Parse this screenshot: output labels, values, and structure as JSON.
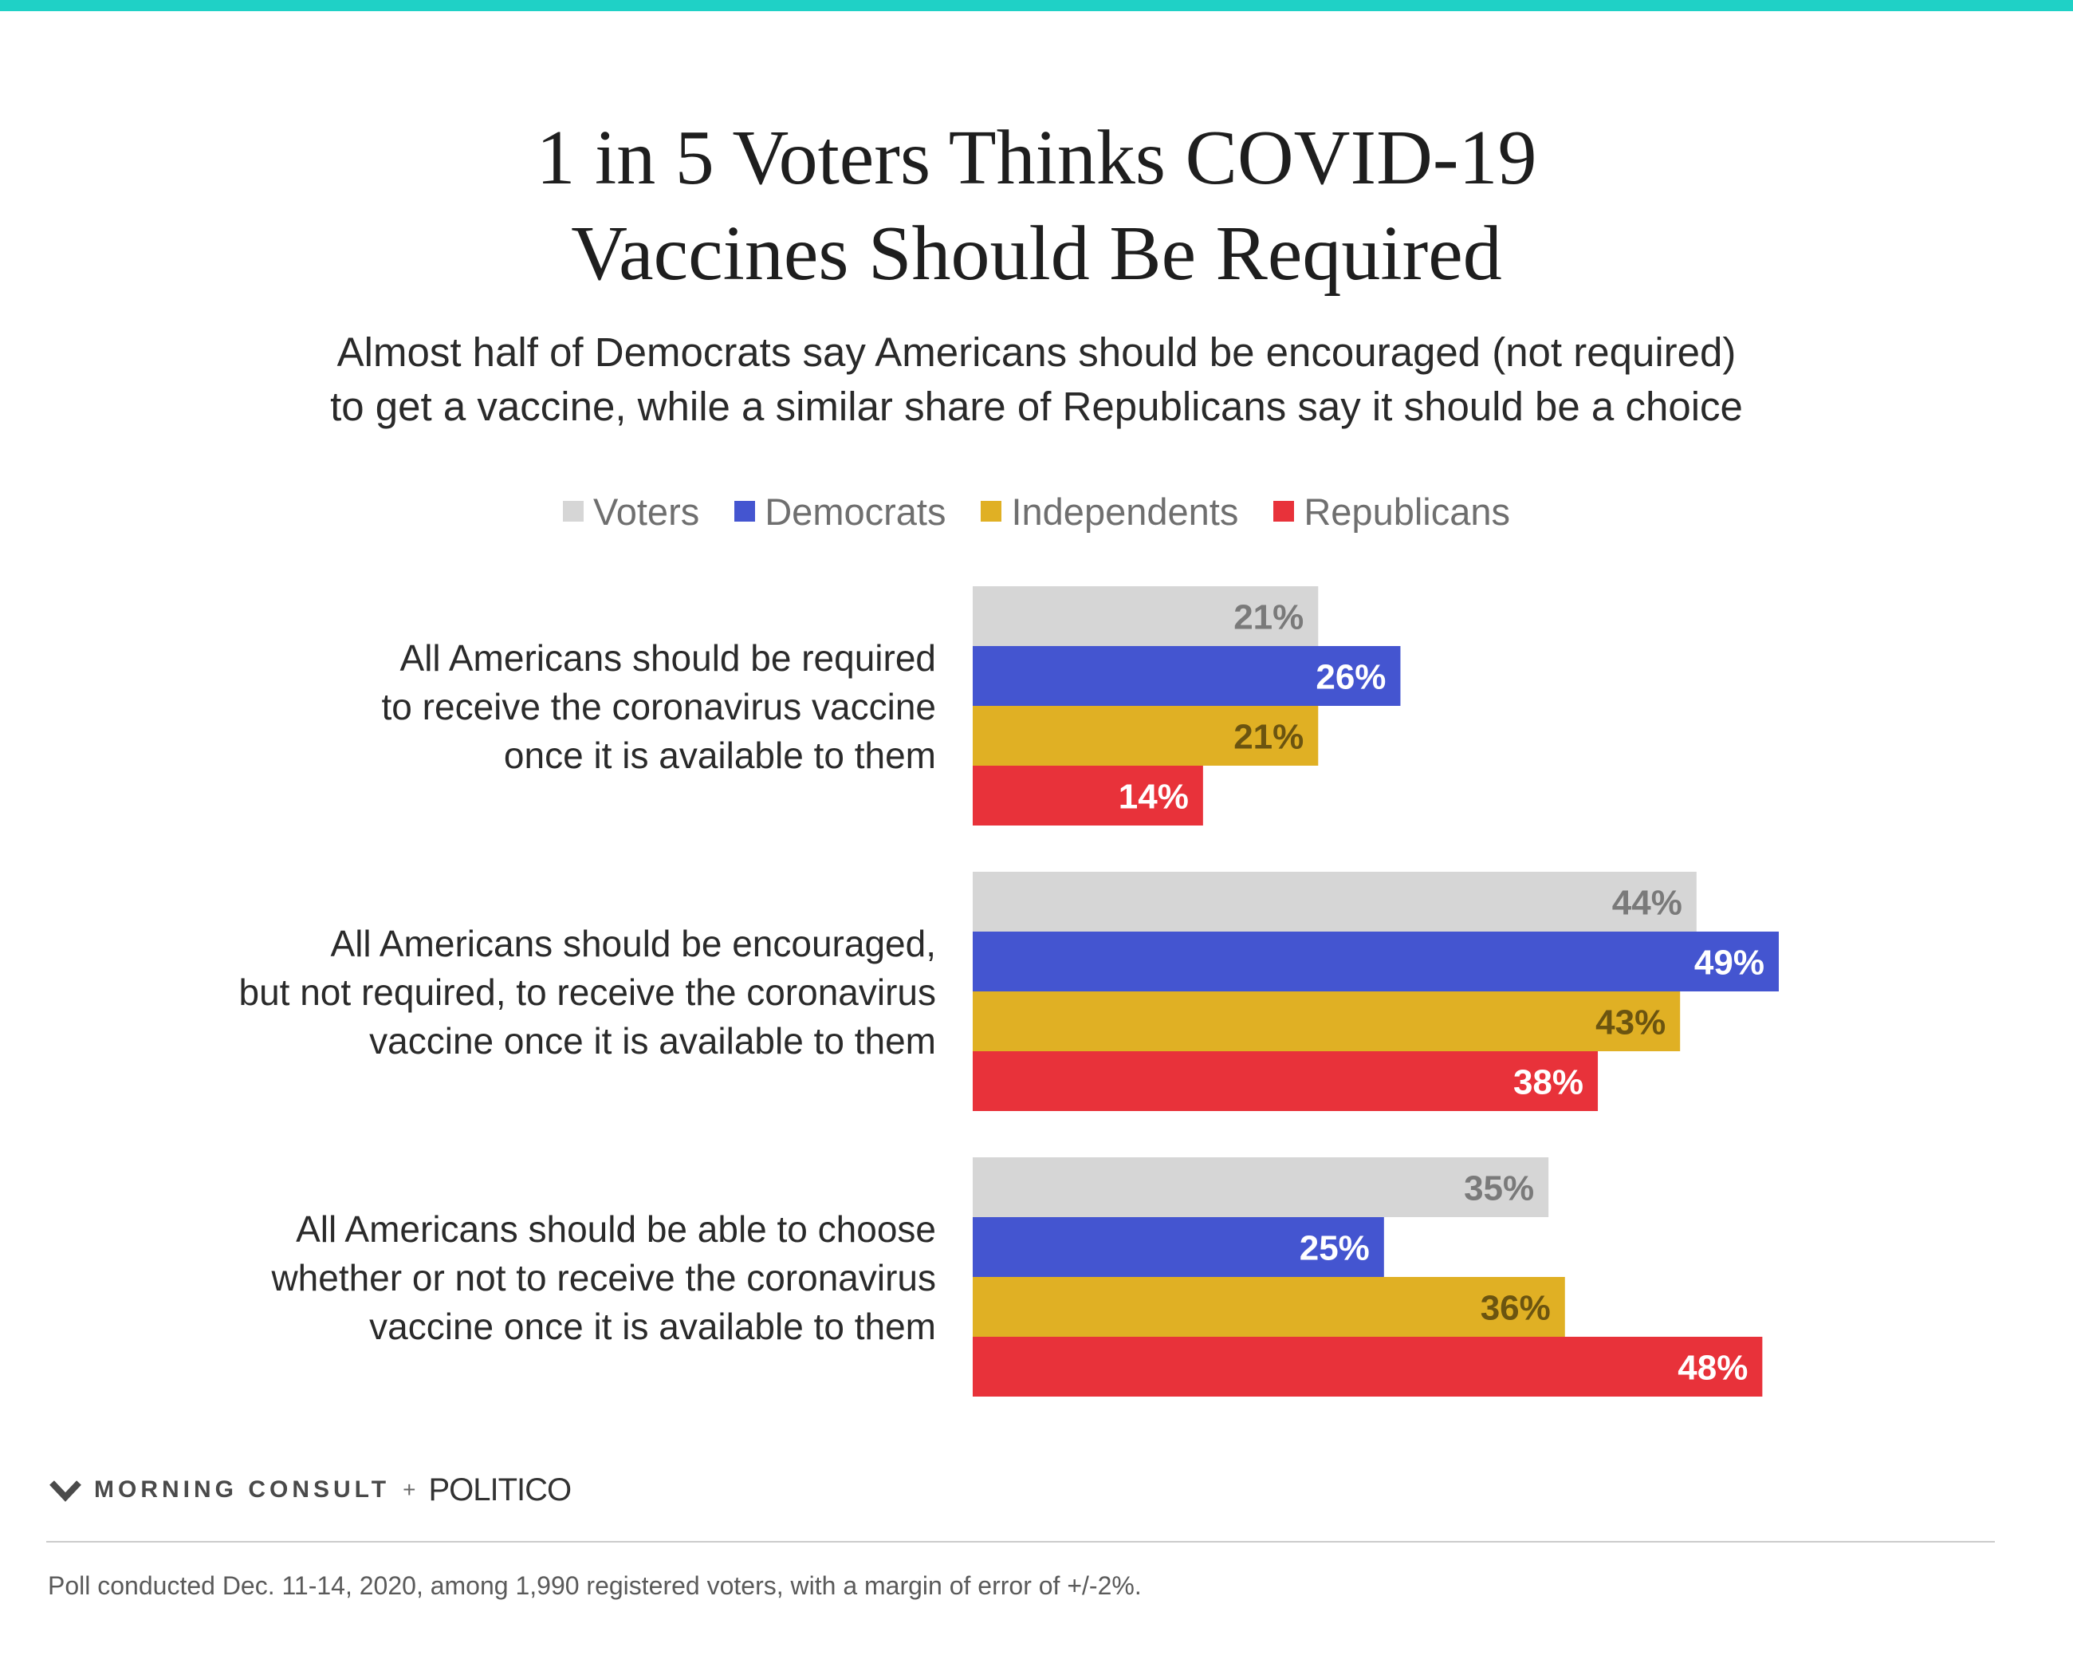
{
  "colors": {
    "top_rule": "#1fd1c6",
    "Voters": "#d6d6d6",
    "Democrats": "#4455d0",
    "Independents": "#e0b024",
    "Republicans": "#e8323a",
    "label_on_gray": "#7a7a7a",
    "label_on_gold": "#6b5410",
    "label_on_dark": "#ffffff"
  },
  "header": {
    "title_lines": [
      "1 in 5 Voters Thinks COVID-19",
      "Vaccines Should Be Required"
    ],
    "subtitle_lines": [
      "Almost half of Democrats say Americans should be encouraged (not required)",
      "to get a vaccine, while a similar share of Republicans say it should be a choice"
    ]
  },
  "legend": [
    "Voters",
    "Democrats",
    "Independents",
    "Republicans"
  ],
  "group_labels": [
    [
      "All Americans should be required",
      "to receive the coronavirus vaccine",
      "once it is available to them"
    ],
    [
      "All Americans should be encouraged,",
      "but not required, to receive the coronavirus",
      "vaccine once it is available to them"
    ],
    [
      "All Americans should be able to choose",
      "whether or not to receive the coronavirus",
      "vaccine once it is available to them"
    ]
  ],
  "chart_data": {
    "type": "bar",
    "orientation": "horizontal",
    "categories": [
      "All Americans should be required to receive the coronavirus vaccine once it is available to them",
      "All Americans should be encouraged, but not required, to receive the coronavirus vaccine once it is available to them",
      "All Americans should be able to choose whether or not to receive the coronavirus vaccine once it is available to them"
    ],
    "series": [
      {
        "name": "Voters",
        "values": [
          21,
          44,
          35
        ]
      },
      {
        "name": "Democrats",
        "values": [
          26,
          49,
          25
        ]
      },
      {
        "name": "Independents",
        "values": [
          21,
          43,
          36
        ]
      },
      {
        "name": "Republicans",
        "values": [
          14,
          38,
          48
        ]
      }
    ],
    "value_labels": [
      [
        "21%",
        "26%",
        "21%",
        "14%"
      ],
      [
        "44%",
        "49%",
        "43%",
        "38%"
      ],
      [
        "35%",
        "25%",
        "36%",
        "48%"
      ]
    ],
    "unit": "%",
    "xlim": [
      0,
      100
    ],
    "grid": false,
    "legend_position": "top-center"
  },
  "footer": {
    "brand": "MORNING CONSULT",
    "plus": "+",
    "partner": "POLITICO",
    "note": "Poll conducted Dec. 11-14, 2020, among 1,990 registered voters, with a margin of error of +/-2%."
  }
}
